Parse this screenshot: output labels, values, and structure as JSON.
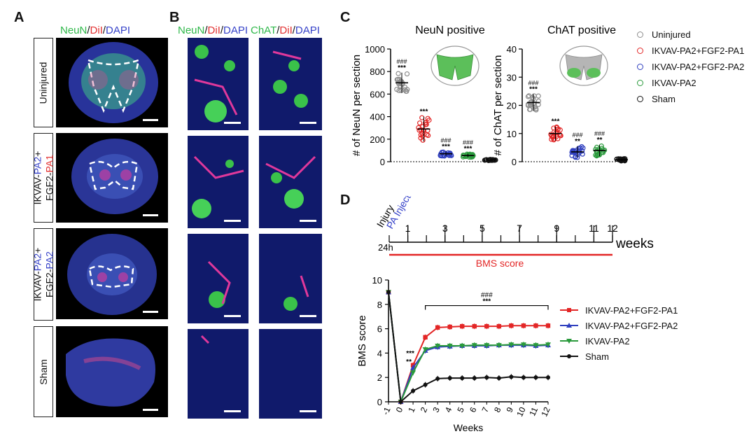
{
  "panels": {
    "a": "A",
    "b": "B",
    "c": "C",
    "d": "D"
  },
  "panel_a": {
    "header": {
      "neun": "NeuN",
      "dil": "DiI",
      "dapi": "DAPI",
      "sep": "/"
    },
    "rows": [
      {
        "line1": "Uninjured"
      },
      {
        "line1_a": "IKVAV-",
        "line1_b": "PA2",
        "line1_c": "+",
        "line2_a": "FGF2-",
        "line2_b": "PA1"
      },
      {
        "line1_a": "IKVAV-",
        "line1_b": "PA2",
        "line1_c": "+",
        "line2_a": "FGF2-",
        "line2_b": "PA2"
      },
      {
        "line1": "Sham"
      }
    ]
  },
  "panel_b": {
    "header_left": {
      "neun": "NeuN",
      "dil": "DiI",
      "dapi": "DAPI",
      "sep": "/"
    },
    "header_right": {
      "chat": "ChAT",
      "dil": "DiI",
      "dapi": "DAPI",
      "sep": "/"
    }
  },
  "panel_c": {
    "legend": [
      {
        "label": "Uninjured",
        "color": "#8c8c8c"
      },
      {
        "label": "IKVAV-PA2+FGF2-PA1",
        "color": "#e32626"
      },
      {
        "label": "IKVAV-PA2+FGF2-PA2",
        "color": "#2f3fbf"
      },
      {
        "label": "IKVAV-PA2",
        "color": "#2a9a3c"
      },
      {
        "label": "Sham",
        "color": "#111111"
      }
    ]
  },
  "panel_d_timeline": {
    "label_injury": "Injury",
    "label_pa": "PA Injection",
    "label_24h": "24h",
    "ticks": [
      "1",
      "3",
      "5",
      "7",
      "9",
      "11",
      "12"
    ],
    "unit": "weeks",
    "bms_label": "BMS score"
  },
  "chart_data": [
    {
      "type": "scatter",
      "title": "NeuN positive",
      "ylabel": "# of NeuN per section",
      "ylim": [
        0,
        1000
      ],
      "yticks": [
        0,
        200,
        400,
        600,
        800,
        1000
      ],
      "series": [
        {
          "name": "Uninjured",
          "mean": 700,
          "sd": 90,
          "color": "#8c8c8c",
          "stars": "***",
          "hash": "###"
        },
        {
          "name": "IKVAV-PA2+FGF2-PA1",
          "mean": 290,
          "sd": 110,
          "color": "#e32626",
          "stars": "***",
          "hash": ""
        },
        {
          "name": "IKVAV-PA2+FGF2-PA2",
          "mean": 70,
          "sd": 20,
          "color": "#2f3fbf",
          "stars": "***",
          "hash": "###"
        },
        {
          "name": "IKVAV-PA2",
          "mean": 55,
          "sd": 15,
          "color": "#2a9a3c",
          "stars": "***",
          "hash": "###"
        },
        {
          "name": "Sham",
          "mean": 15,
          "sd": 5,
          "color": "#111111",
          "stars": "",
          "hash": ""
        }
      ]
    },
    {
      "type": "scatter",
      "title": "ChAT positive",
      "ylabel": "# of ChAT per section",
      "ylim": [
        0,
        40
      ],
      "yticks": [
        0,
        10,
        20,
        30,
        40
      ],
      "series": [
        {
          "name": "Uninjured",
          "mean": 21,
          "sd": 3,
          "color": "#8c8c8c",
          "stars": "***",
          "hash": "###"
        },
        {
          "name": "IKVAV-PA2+FGF2-PA1",
          "mean": 10,
          "sd": 2.5,
          "color": "#e32626",
          "stars": "***",
          "hash": ""
        },
        {
          "name": "IKVAV-PA2+FGF2-PA2",
          "mean": 3.5,
          "sd": 2,
          "color": "#2f3fbf",
          "stars": "**",
          "hash": "###"
        },
        {
          "name": "IKVAV-PA2",
          "mean": 4,
          "sd": 2,
          "color": "#2a9a3c",
          "stars": "**",
          "hash": "###"
        },
        {
          "name": "Sham",
          "mean": 0.7,
          "sd": 0.4,
          "color": "#111111",
          "stars": "",
          "hash": ""
        }
      ]
    },
    {
      "type": "line",
      "title": "",
      "xlabel": "Weeks",
      "ylabel": "BMS score",
      "ylim": [
        0,
        10
      ],
      "yticks": [
        0,
        2,
        4,
        6,
        8,
        10
      ],
      "x": [
        -1,
        0,
        1,
        2,
        3,
        4,
        5,
        6,
        7,
        8,
        9,
        10,
        11,
        12
      ],
      "series": [
        {
          "name": "IKVAV-PA2+FGF2-PA1",
          "color": "#e32626",
          "marker": "square",
          "values": [
            9,
            0,
            3.0,
            5.3,
            6.1,
            6.15,
            6.2,
            6.2,
            6.2,
            6.2,
            6.25,
            6.25,
            6.25,
            6.25
          ]
        },
        {
          "name": "IKVAV-PA2+FGF2-PA2",
          "color": "#2f3fbf",
          "marker": "triangle",
          "values": [
            9,
            0,
            2.8,
            4.2,
            4.5,
            4.55,
            4.6,
            4.6,
            4.6,
            4.65,
            4.65,
            4.65,
            4.6,
            4.65
          ]
        },
        {
          "name": "IKVAV-PA2",
          "color": "#2a9a3c",
          "marker": "triangle-down",
          "values": [
            9,
            0,
            2.4,
            4.3,
            4.6,
            4.6,
            4.6,
            4.65,
            4.65,
            4.65,
            4.7,
            4.7,
            4.65,
            4.7
          ]
        },
        {
          "name": "Sham",
          "color": "#111111",
          "marker": "circle",
          "values": [
            9,
            0,
            0.9,
            1.4,
            1.9,
            1.95,
            1.95,
            1.95,
            2.0,
            1.95,
            2.05,
            2.0,
            2.0,
            2.0
          ]
        }
      ],
      "annotations": [
        {
          "text": "###",
          "x_from": 2,
          "x_to": 12
        },
        {
          "text": "***",
          "x_from": 2,
          "x_to": 12
        },
        {
          "text": "***",
          "x": 1
        },
        {
          "text": "**",
          "x": 1
        }
      ]
    }
  ]
}
